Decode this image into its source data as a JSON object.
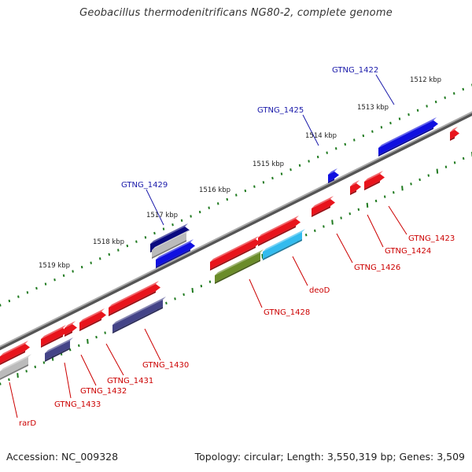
{
  "header": {
    "title": "Geobacillus thermodenitrificans NG80-2, complete genome"
  },
  "footer": {
    "accession": "Accession: NC_009328",
    "summary": "Topology: circular; Length: 3,550,319 bp; Genes: 3,509"
  },
  "colors": {
    "backbone": "#808080",
    "ruler_dots": "#1f7a1f",
    "forward_label": "#1a1aaa",
    "reverse_label": "#cc0000",
    "gene_red": "#e8141c",
    "gene_blue": "#1010e0",
    "gene_navy": "#0a0a80",
    "gene_slate": "#444488",
    "gene_cyan": "#33bbee",
    "gene_olive": "#6b8c2a",
    "gene_gray": "#bbbbbb"
  },
  "kbp_ticks": [
    "1512 kbp",
    "1513 kbp",
    "1514 kbp",
    "1515 kbp",
    "1516 kbp",
    "1517 kbp",
    "1518 kbp",
    "1519 kbp"
  ],
  "gene_labels": {
    "forward": [
      "GTNG_1422",
      "GTNG_1425",
      "GTNG_1429"
    ],
    "reverse": [
      "GTNG_1423",
      "GTNG_1424",
      "GTNG_1426",
      "deoD",
      "GTNG_1428",
      "GTNG_1430",
      "GTNG_1431",
      "GTNG_1432",
      "GTNG_1433",
      "rarD"
    ]
  }
}
